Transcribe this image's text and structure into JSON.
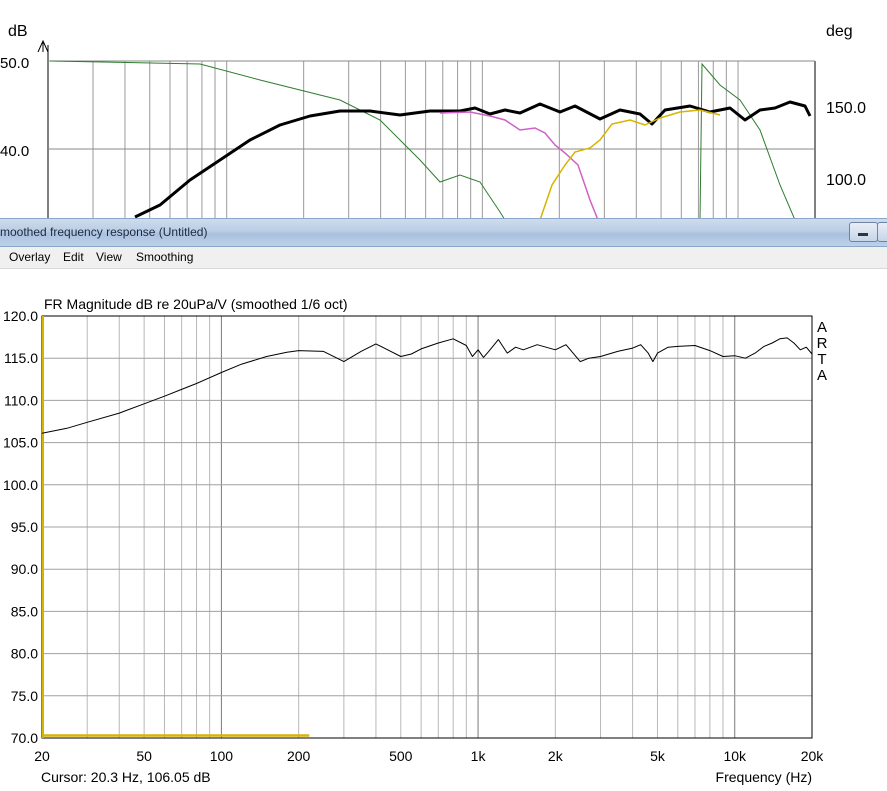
{
  "background_window": {
    "left_axis_label": "dB",
    "right_axis_label": "deg",
    "left_ticks": [
      "50.0",
      "40.0"
    ],
    "right_ticks": [
      "150.0",
      "100.0"
    ]
  },
  "window": {
    "title": "moothed frequency response (Untitled)"
  },
  "menu": [
    "Overlay",
    "Edit",
    "View",
    "Smoothing"
  ],
  "chart_data": {
    "type": "line",
    "title": "FR Magnitude dB re 20uPa/V (smoothed 1/6 oct)",
    "xlabel": "Frequency (Hz)",
    "ylabel": "",
    "xscale": "log",
    "xlim": [
      20,
      20000
    ],
    "ylim": [
      70,
      120
    ],
    "grid": true,
    "x_tick_labels": [
      "20",
      "50",
      "100",
      "200",
      "500",
      "1k",
      "2k",
      "5k",
      "10k",
      "20k"
    ],
    "y_tick_labels": [
      "120.0",
      "115.0",
      "110.0",
      "105.0",
      "100.0",
      "95.0",
      "90.0",
      "85.0",
      "80.0",
      "75.0",
      "70.0"
    ],
    "brand": [
      "A",
      "R",
      "T",
      "A"
    ],
    "cursor_text": "Cursor: 20.3 Hz, 106.05 dB",
    "series": [
      {
        "color": "#000000",
        "x": [
          20,
          25,
          30,
          40,
          50,
          60,
          70,
          80,
          100,
          120,
          150,
          180,
          200,
          250,
          300,
          350,
          400,
          450,
          500,
          550,
          600,
          700,
          800,
          900,
          950,
          1000,
          1050,
          1100,
          1200,
          1300,
          1400,
          1500,
          1700,
          2000,
          2200,
          2500,
          2700,
          3000,
          3500,
          4000,
          4300,
          4600,
          4800,
          5000,
          5500,
          6000,
          7000,
          8000,
          9000,
          10000,
          11000,
          12000,
          13000,
          14000,
          15000,
          16000,
          17000,
          18000,
          19000,
          20000
        ],
        "y": [
          106.1,
          106.7,
          107.4,
          108.5,
          109.6,
          110.5,
          111.3,
          112.0,
          113.3,
          114.3,
          115.2,
          115.7,
          115.9,
          115.8,
          114.6,
          115.8,
          116.7,
          115.9,
          115.2,
          115.5,
          116.1,
          116.8,
          117.3,
          116.5,
          115.2,
          116.0,
          115.1,
          115.8,
          117.2,
          115.6,
          116.3,
          116.0,
          116.6,
          116.0,
          116.6,
          114.6,
          115.0,
          115.2,
          115.8,
          116.2,
          116.6,
          115.6,
          114.6,
          115.6,
          116.3,
          116.4,
          116.5,
          115.9,
          115.2,
          115.3,
          115.0,
          115.6,
          116.4,
          116.8,
          117.3,
          117.4,
          116.8,
          116.0,
          116.3,
          115.5
        ]
      },
      {
        "color": "#d6b400",
        "x": [
          20,
          220
        ],
        "y": [
          70.3,
          70.3
        ]
      }
    ]
  }
}
